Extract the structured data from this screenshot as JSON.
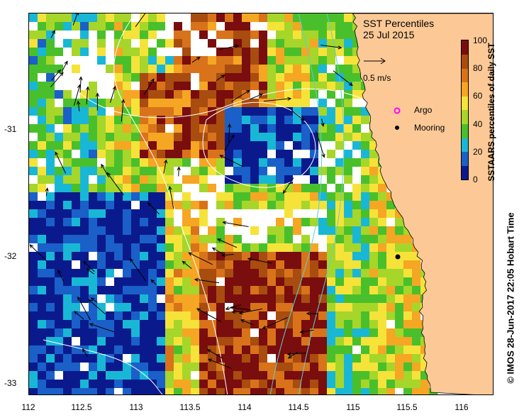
{
  "title": "SST Percentiles",
  "date": "25 Jul 2015",
  "scale_vector_label": "0.5 m/s",
  "legend": {
    "argo": "Argo",
    "mooring": "Mooring",
    "argo_color": "#ff00ff",
    "mooring_color": "#000000"
  },
  "colorbar": {
    "label": "SSTAARS percentiles of daily SST",
    "ticks": [
      "100",
      "80",
      "60",
      "40",
      "20",
      "0"
    ],
    "colors": [
      "#0a1a8c",
      "#1a60c8",
      "#19b7d6",
      "#49c02b",
      "#a6d62a",
      "#f5e33a",
      "#f5a623",
      "#d8731b",
      "#a84c10",
      "#7a0d0d"
    ]
  },
  "x_axis": {
    "ticks": [
      "112",
      "112.5",
      "113",
      "113.5",
      "114",
      "114.5",
      "115",
      "115.5",
      "116"
    ]
  },
  "y_axis": {
    "ticks": [
      "-31",
      "-32",
      "-33"
    ]
  },
  "credit": "© IMOS 28-Jun-2017 22:05 Hobart Time",
  "colors": {
    "land": "#fcc996",
    "cloud": "#ffffff",
    "vectors": "#000000",
    "contours": "#ffffff",
    "bathymetry": "#5ad2d2"
  }
}
